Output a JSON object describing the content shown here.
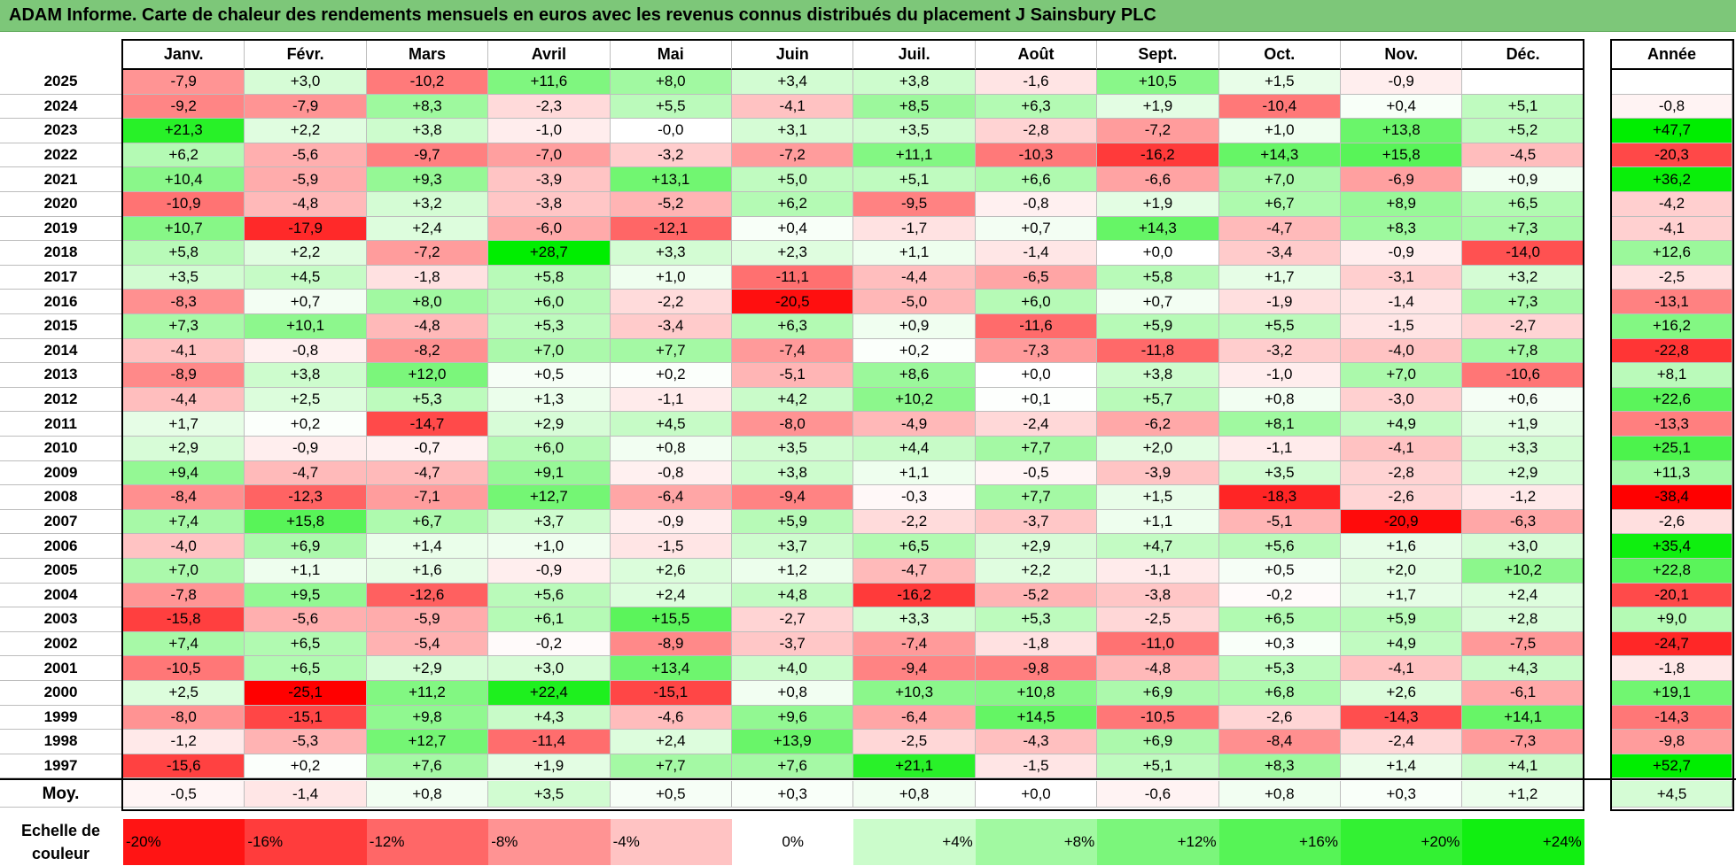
{
  "title": "ADAM Informe. Carte de chaleur des rendements mensuels en euros avec les revenus connus distribués du placement J Sainsbury PLC",
  "chart_data": {
    "type": "heatmap",
    "columns": [
      "Janv.",
      "Févr.",
      "Mars",
      "Avril",
      "Mai",
      "Juin",
      "Juil.",
      "Août",
      "Sept.",
      "Oct.",
      "Nov.",
      "Déc."
    ],
    "year_column": "Année",
    "rows": [
      {
        "label": "2025",
        "values": [
          -7.9,
          3.0,
          -10.2,
          11.6,
          8.0,
          3.4,
          3.8,
          -1.6,
          10.5,
          1.5,
          -0.9,
          null
        ],
        "year": null
      },
      {
        "label": "2024",
        "values": [
          -9.2,
          -7.9,
          8.3,
          -2.3,
          5.5,
          -4.1,
          8.5,
          6.3,
          1.9,
          -10.4,
          0.4,
          5.1
        ],
        "year": -0.8
      },
      {
        "label": "2023",
        "values": [
          21.3,
          2.2,
          3.8,
          -1.0,
          -0.0,
          3.1,
          3.5,
          -2.8,
          -7.2,
          1.0,
          13.8,
          5.2
        ],
        "year": 47.7
      },
      {
        "label": "2022",
        "values": [
          6.2,
          -5.6,
          -9.7,
          -7.0,
          -3.2,
          -7.2,
          11.1,
          -10.3,
          -16.2,
          14.3,
          15.8,
          -4.5
        ],
        "year": -20.3
      },
      {
        "label": "2021",
        "values": [
          10.4,
          -5.9,
          9.3,
          -3.9,
          13.1,
          5.0,
          5.1,
          6.6,
          -6.6,
          7.0,
          -6.9,
          0.9
        ],
        "year": 36.2
      },
      {
        "label": "2020",
        "values": [
          -10.9,
          -4.8,
          3.2,
          -3.8,
          -5.2,
          6.2,
          -9.5,
          -0.8,
          1.9,
          6.7,
          8.9,
          6.5
        ],
        "year": -4.2
      },
      {
        "label": "2019",
        "values": [
          10.7,
          -17.9,
          2.4,
          -6.0,
          -12.1,
          0.4,
          -1.7,
          0.7,
          14.3,
          -4.7,
          8.3,
          7.3
        ],
        "year": -4.1
      },
      {
        "label": "2018",
        "values": [
          5.8,
          2.2,
          -7.2,
          28.7,
          3.3,
          2.3,
          1.1,
          -1.4,
          0.0,
          -3.4,
          -0.9,
          -14.0
        ],
        "year": 12.6
      },
      {
        "label": "2017",
        "values": [
          3.5,
          4.5,
          -1.8,
          5.8,
          1.0,
          -11.1,
          -4.4,
          -6.5,
          5.8,
          1.7,
          -3.1,
          3.2
        ],
        "year": -2.5
      },
      {
        "label": "2016",
        "values": [
          -8.3,
          0.7,
          8.0,
          6.0,
          -2.2,
          -20.5,
          -5.0,
          6.0,
          0.7,
          -1.9,
          -1.4,
          7.3
        ],
        "year": -13.1
      },
      {
        "label": "2015",
        "values": [
          7.3,
          10.1,
          -4.8,
          5.3,
          -3.4,
          6.3,
          0.9,
          -11.6,
          5.9,
          5.5,
          -1.5,
          -2.7
        ],
        "year": 16.2
      },
      {
        "label": "2014",
        "values": [
          -4.1,
          -0.8,
          -8.2,
          7.0,
          7.7,
          -7.4,
          0.2,
          -7.3,
          -11.8,
          -3.2,
          -4.0,
          7.8
        ],
        "year": -22.8
      },
      {
        "label": "2013",
        "values": [
          -8.9,
          3.8,
          12.0,
          0.5,
          0.2,
          -5.1,
          8.6,
          0.0,
          3.8,
          -1.0,
          7.0,
          -10.6
        ],
        "year": 8.1
      },
      {
        "label": "2012",
        "values": [
          -4.4,
          2.5,
          5.3,
          1.3,
          -1.1,
          4.2,
          10.2,
          0.1,
          5.7,
          0.8,
          -3.0,
          0.6
        ],
        "year": 22.6
      },
      {
        "label": "2011",
        "values": [
          1.7,
          0.2,
          -14.7,
          2.9,
          4.5,
          -8.0,
          -4.9,
          -2.4,
          -6.2,
          8.1,
          4.9,
          1.9
        ],
        "year": -13.3
      },
      {
        "label": "2010",
        "values": [
          2.9,
          -0.9,
          -0.7,
          6.0,
          0.8,
          3.5,
          4.4,
          7.7,
          2.0,
          -1.1,
          -4.1,
          3.3
        ],
        "year": 25.1
      },
      {
        "label": "2009",
        "values": [
          9.4,
          -4.7,
          -4.7,
          9.1,
          -0.8,
          3.8,
          1.1,
          -0.5,
          -3.9,
          3.5,
          -2.8,
          2.9
        ],
        "year": 11.3
      },
      {
        "label": "2008",
        "values": [
          -8.4,
          -12.3,
          -7.1,
          12.7,
          -6.4,
          -9.4,
          -0.3,
          7.7,
          1.5,
          -18.3,
          -2.6,
          -1.2
        ],
        "year": -38.4
      },
      {
        "label": "2007",
        "values": [
          7.4,
          15.8,
          6.7,
          3.7,
          -0.9,
          5.9,
          -2.2,
          -3.7,
          1.1,
          -5.1,
          -20.9,
          -6.3
        ],
        "year": -2.6
      },
      {
        "label": "2006",
        "values": [
          -4.0,
          6.9,
          1.4,
          1.0,
          -1.5,
          3.7,
          6.5,
          2.9,
          4.7,
          5.6,
          1.6,
          3.0
        ],
        "year": 35.4
      },
      {
        "label": "2005",
        "values": [
          7.0,
          1.1,
          1.6,
          -0.9,
          2.6,
          1.2,
          -4.7,
          2.2,
          -1.1,
          0.5,
          2.0,
          10.2
        ],
        "year": 22.8
      },
      {
        "label": "2004",
        "values": [
          -7.8,
          9.5,
          -12.6,
          5.6,
          2.4,
          4.8,
          -16.2,
          -5.2,
          -3.8,
          -0.2,
          1.7,
          2.4
        ],
        "year": -20.1
      },
      {
        "label": "2003",
        "values": [
          -15.8,
          -5.6,
          -5.9,
          6.1,
          15.5,
          -2.7,
          3.3,
          5.3,
          -2.5,
          6.5,
          5.9,
          2.8
        ],
        "year": 9.0
      },
      {
        "label": "2002",
        "values": [
          7.4,
          6.5,
          -5.4,
          -0.2,
          -8.9,
          -3.7,
          -7.4,
          -1.8,
          -11.0,
          0.3,
          4.9,
          -7.5
        ],
        "year": -24.7
      },
      {
        "label": "2001",
        "values": [
          -10.5,
          6.5,
          2.9,
          3.0,
          13.4,
          4.0,
          -9.4,
          -9.8,
          -4.8,
          5.3,
          -4.1,
          4.3
        ],
        "year": -1.8
      },
      {
        "label": "2000",
        "values": [
          2.5,
          -25.1,
          11.2,
          22.4,
          -15.1,
          0.8,
          10.3,
          10.8,
          6.9,
          6.8,
          2.6,
          -6.1
        ],
        "year": 19.1
      },
      {
        "label": "1999",
        "values": [
          -8.0,
          -15.1,
          9.8,
          4.3,
          -4.6,
          9.6,
          -6.4,
          14.5,
          -10.5,
          -2.6,
          -14.3,
          14.1
        ],
        "year": -14.3
      },
      {
        "label": "1998",
        "values": [
          -1.2,
          -5.3,
          12.7,
          -11.4,
          2.4,
          13.9,
          -2.5,
          -4.3,
          6.9,
          -8.4,
          -2.4,
          -7.3
        ],
        "year": -9.8
      },
      {
        "label": "1997",
        "values": [
          -15.6,
          0.2,
          7.6,
          1.9,
          7.7,
          7.6,
          21.1,
          -1.5,
          5.1,
          8.3,
          1.4,
          4.1
        ],
        "year": 52.7
      }
    ],
    "average": {
      "label": "Moy.",
      "values": [
        -0.5,
        -1.4,
        0.8,
        3.5,
        0.5,
        0.3,
        0.8,
        0.0,
        -0.6,
        0.8,
        0.3,
        1.2
      ],
      "year": 4.5
    },
    "scale": {
      "label": "Echelle de couleur",
      "steps": [
        "-20%",
        "-16%",
        "-12%",
        "-8%",
        "-4%",
        "0%",
        "+4%",
        "+8%",
        "+12%",
        "+16%",
        "+20%",
        "+24%"
      ],
      "step_values": [
        -20,
        -16,
        -12,
        -8,
        -4,
        0,
        4,
        8,
        12,
        16,
        20,
        24
      ]
    },
    "colors": {
      "negative": "#ff0000",
      "zero": "#ffffff",
      "positive": "#00ee00"
    }
  }
}
